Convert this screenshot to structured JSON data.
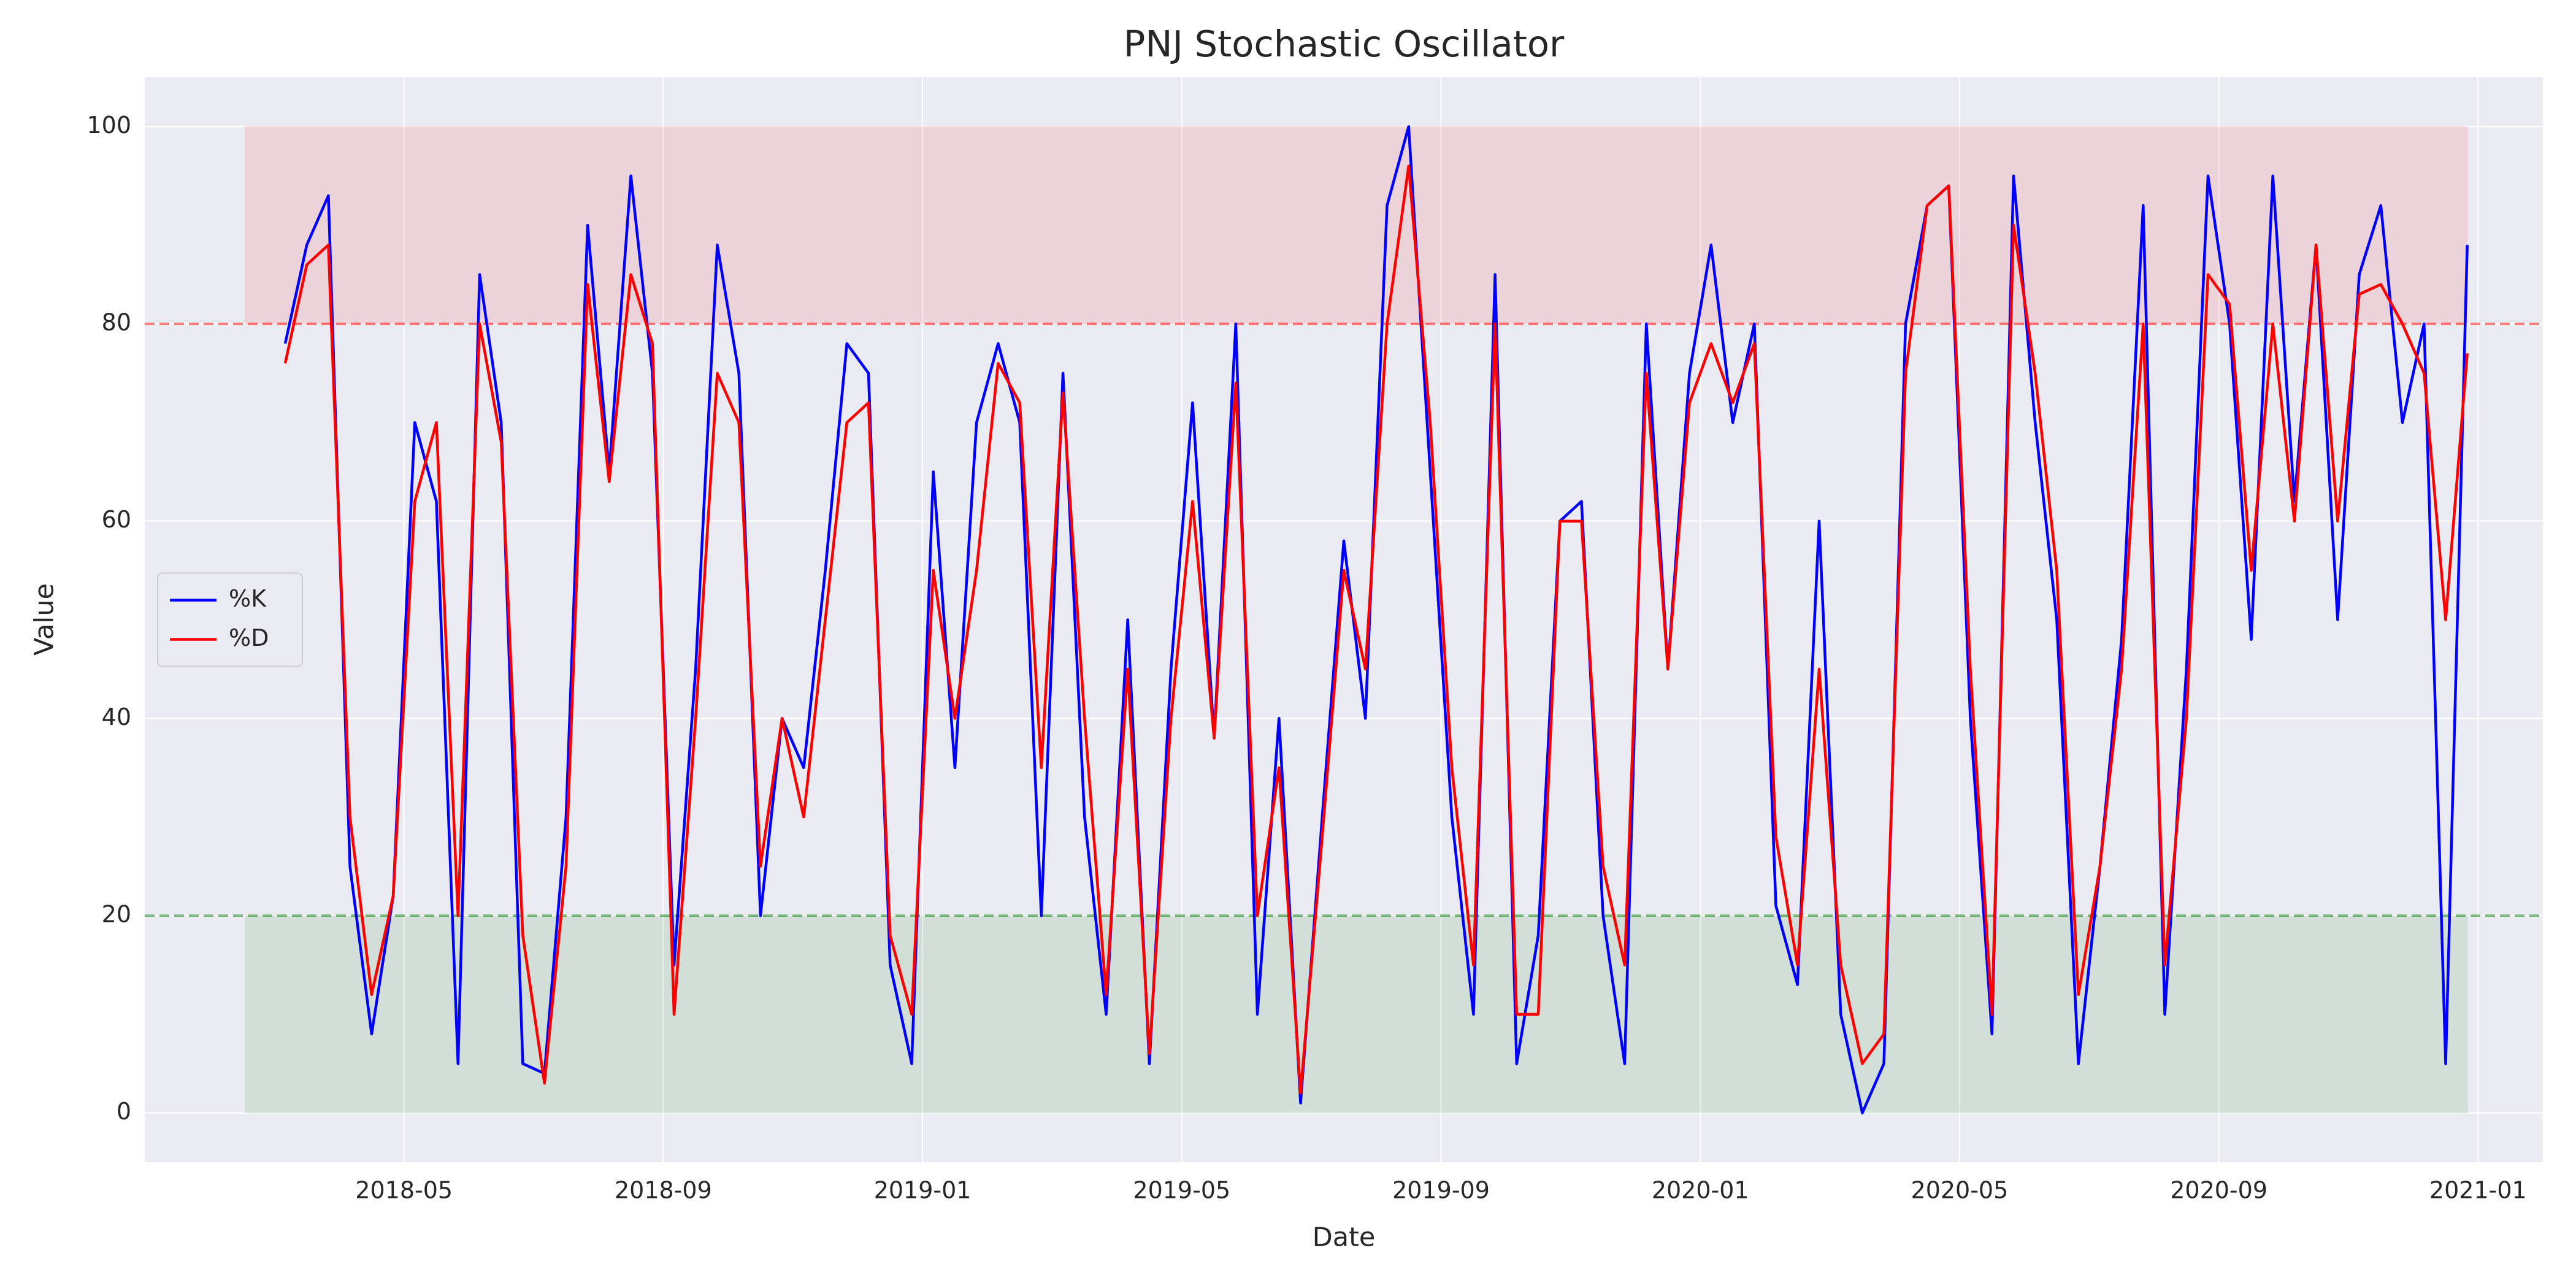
{
  "chart_data": {
    "type": "line",
    "title": "PNJ Stochastic Oscillator",
    "xlabel": "Date",
    "ylabel": "Value",
    "x": [
      "2018-03",
      "2018-03",
      "2018-03",
      "2018-04",
      "2018-04",
      "2018-04",
      "2018-05",
      "2018-05",
      "2018-05",
      "2018-06",
      "2018-06",
      "2018-06",
      "2018-07",
      "2018-07",
      "2018-07",
      "2018-08",
      "2018-08",
      "2018-08",
      "2018-09",
      "2018-09",
      "2018-09",
      "2018-10",
      "2018-10",
      "2018-10",
      "2018-11",
      "2018-11",
      "2018-11",
      "2018-12",
      "2018-12",
      "2018-12",
      "2019-01",
      "2019-01",
      "2019-01",
      "2019-02",
      "2019-02",
      "2019-02",
      "2019-03",
      "2019-03",
      "2019-03",
      "2019-04",
      "2019-04",
      "2019-04",
      "2019-05",
      "2019-05",
      "2019-05",
      "2019-06",
      "2019-06",
      "2019-06",
      "2019-07",
      "2019-07",
      "2019-07",
      "2019-08",
      "2019-08",
      "2019-08",
      "2019-09",
      "2019-09",
      "2019-09",
      "2019-10",
      "2019-10",
      "2019-10",
      "2019-11",
      "2019-11",
      "2019-11",
      "2019-12",
      "2019-12",
      "2019-12",
      "2020-01",
      "2020-01",
      "2020-01",
      "2020-02",
      "2020-02",
      "2020-02",
      "2020-03",
      "2020-03",
      "2020-03",
      "2020-04",
      "2020-04",
      "2020-04",
      "2020-05",
      "2020-05",
      "2020-05",
      "2020-06",
      "2020-06",
      "2020-06",
      "2020-07",
      "2020-07",
      "2020-07",
      "2020-08",
      "2020-08",
      "2020-08",
      "2020-09",
      "2020-09",
      "2020-09",
      "2020-10",
      "2020-10",
      "2020-10",
      "2020-11",
      "2020-11",
      "2020-11",
      "2020-12",
      "2020-12",
      "2020-12"
    ],
    "series": [
      {
        "name": "%K",
        "color": "#0000ff",
        "values": [
          78,
          88,
          93,
          25,
          8,
          22,
          70,
          62,
          5,
          85,
          70,
          5,
          4,
          30,
          90,
          65,
          95,
          75,
          15,
          45,
          88,
          75,
          20,
          40,
          35,
          55,
          78,
          75,
          15,
          5,
          65,
          35,
          70,
          78,
          70,
          20,
          75,
          30,
          10,
          50,
          5,
          45,
          72,
          38,
          80,
          10,
          40,
          1,
          30,
          58,
          40,
          92,
          100,
          65,
          30,
          10,
          85,
          5,
          18,
          60,
          62,
          20,
          5,
          80,
          45,
          75,
          88,
          70,
          80,
          21,
          13,
          60,
          10,
          0,
          5,
          80,
          92,
          94,
          40,
          8,
          95,
          70,
          50,
          5,
          25,
          48,
          92,
          10,
          45,
          95,
          80,
          48,
          95,
          62,
          88,
          50,
          85,
          92,
          70,
          80,
          5,
          88
        ]
      },
      {
        "name": "%D",
        "color": "#ff0000",
        "values": [
          76,
          86,
          88,
          30,
          12,
          22,
          62,
          70,
          20,
          80,
          68,
          18,
          3,
          25,
          84,
          64,
          85,
          78,
          10,
          40,
          75,
          70,
          25,
          40,
          30,
          50,
          70,
          72,
          18,
          10,
          55,
          40,
          55,
          76,
          72,
          35,
          73,
          40,
          12,
          45,
          6,
          40,
          62,
          38,
          74,
          20,
          35,
          2,
          28,
          55,
          45,
          80,
          96,
          70,
          35,
          15,
          80,
          10,
          10,
          60,
          60,
          25,
          15,
          75,
          45,
          72,
          78,
          72,
          78,
          28,
          15,
          45,
          15,
          5,
          8,
          75,
          92,
          94,
          45,
          10,
          90,
          75,
          55,
          12,
          25,
          45,
          80,
          15,
          40,
          85,
          82,
          55,
          80,
          60,
          88,
          60,
          83,
          84,
          80,
          75,
          50,
          77
        ]
      }
    ],
    "xlim": [
      "2018-01",
      "2021-02"
    ],
    "xticks": [
      "2018-05",
      "2018-09",
      "2019-01",
      "2019-05",
      "2019-09",
      "2020-01",
      "2020-05",
      "2020-09",
      "2021-01"
    ],
    "ylim": [
      -5,
      105
    ],
    "yticks": [
      0,
      20,
      40,
      60,
      80,
      100
    ],
    "overbought": 80,
    "oversold": 20,
    "overbought_color": "#ff0000",
    "oversold_color": "#008000",
    "grid": true,
    "legend": "center left"
  }
}
